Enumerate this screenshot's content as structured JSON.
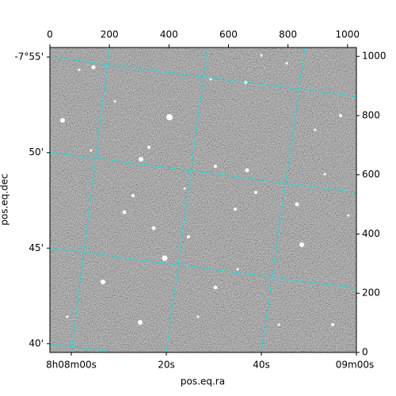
{
  "chart_data": {
    "type": "image",
    "xlabel": "pos.eq.ra",
    "ylabel": "pos.eq.dec",
    "xlim": [
      0,
      1030
    ],
    "xticks": [
      0,
      200,
      400,
      600,
      800,
      1000
    ],
    "ylim": [
      0,
      1030
    ],
    "yticks": [
      0,
      200,
      400,
      600,
      800,
      1000
    ],
    "ra_lim": [
      -4.5,
      60
    ],
    "ra_ticks": [
      {
        "value": 0,
        "label": "8h08m00s"
      },
      {
        "value": 20,
        "label": "20s"
      },
      {
        "value": 40,
        "label": "40s"
      },
      {
        "value": 60,
        "label": "09m00s"
      }
    ],
    "dec_lim": [
      -7.925,
      -7.659
    ],
    "dec_ticks": [
      {
        "value": -7.9167,
        "label": "-7°55'"
      },
      {
        "value": -7.8333,
        "label": "50'"
      },
      {
        "value": -7.75,
        "label": "45'"
      },
      {
        "value": -7.6667,
        "label": "40'"
      }
    ],
    "grid": true,
    "grid_color": "#00e5e5"
  }
}
